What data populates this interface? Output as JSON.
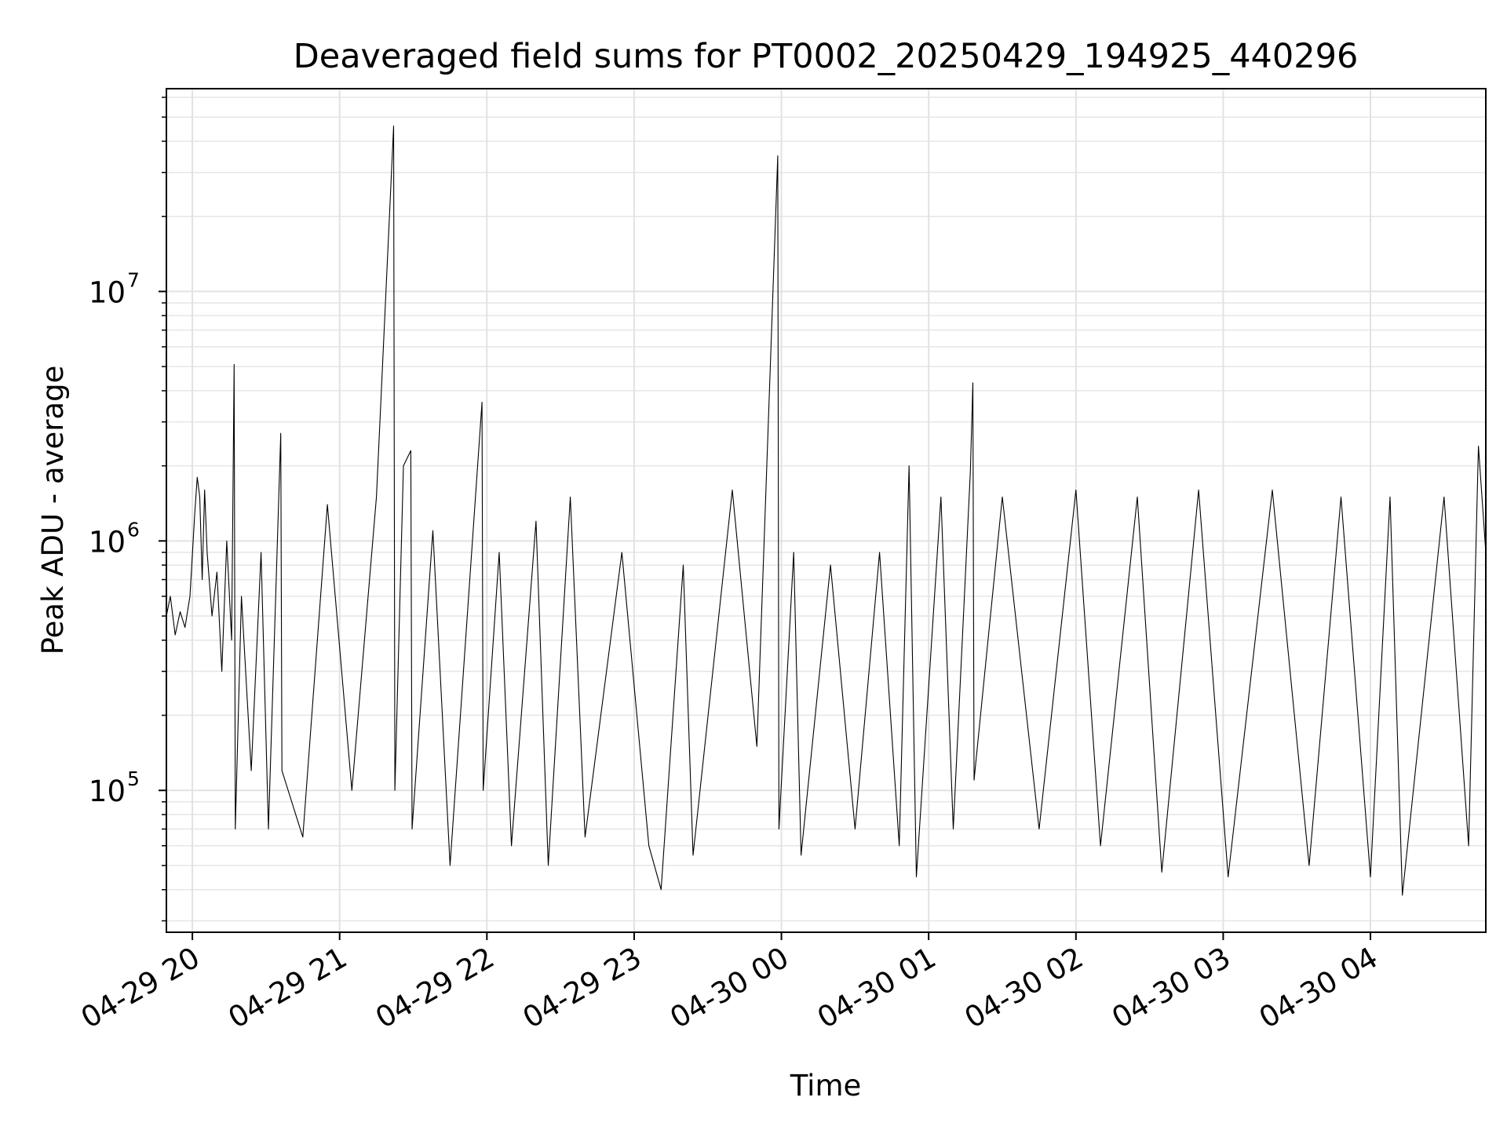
{
  "chart_data": {
    "type": "line",
    "title": "Deaveraged field sums for PT0002_20250429_194925_440296",
    "xlabel": "Time",
    "ylabel": "Peak ADU - average",
    "x_axis": {
      "type": "datetime",
      "range": [
        "2025-04-29 19:49:25",
        "2025-04-30 04:47:00"
      ],
      "ticks": [
        {
          "value": "2025-04-29 20:00",
          "label": "04-29 20"
        },
        {
          "value": "2025-04-29 21:00",
          "label": "04-29 21"
        },
        {
          "value": "2025-04-29 22:00",
          "label": "04-29 22"
        },
        {
          "value": "2025-04-29 23:00",
          "label": "04-29 23"
        },
        {
          "value": "2025-04-30 00:00",
          "label": "04-30 00"
        },
        {
          "value": "2025-04-30 01:00",
          "label": "04-30 01"
        },
        {
          "value": "2025-04-30 02:00",
          "label": "04-30 02"
        },
        {
          "value": "2025-04-30 03:00",
          "label": "04-30 03"
        },
        {
          "value": "2025-04-30 04:00",
          "label": "04-30 04"
        }
      ]
    },
    "y_axis": {
      "scale": "log",
      "range": [
        27000,
        65000000
      ],
      "ticks": [
        {
          "value": 100000,
          "base": "10",
          "exp": "5"
        },
        {
          "value": 1000000,
          "base": "10",
          "exp": "6"
        },
        {
          "value": 10000000,
          "base": "10",
          "exp": "7"
        }
      ]
    },
    "grid": {
      "major": true,
      "minor": true
    },
    "legend": "none",
    "line_color": "#000000",
    "series": [
      {
        "points": [
          [
            "2025-04-29 19:49:25",
            500000
          ],
          [
            "2025-04-29 19:51:00",
            600000
          ],
          [
            "2025-04-29 19:53:00",
            420000
          ],
          [
            "2025-04-29 19:55:00",
            520000
          ],
          [
            "2025-04-29 19:57:00",
            450000
          ],
          [
            "2025-04-29 19:59:00",
            600000
          ],
          [
            "2025-04-29 20:01:00",
            1300000
          ],
          [
            "2025-04-29 20:02:00",
            1800000
          ],
          [
            "2025-04-29 20:03:00",
            1500000
          ],
          [
            "2025-04-29 20:04:00",
            700000
          ],
          [
            "2025-04-29 20:05:00",
            1600000
          ],
          [
            "2025-04-29 20:06:00",
            900000
          ],
          [
            "2025-04-29 20:08:00",
            500000
          ],
          [
            "2025-04-29 20:10:00",
            750000
          ],
          [
            "2025-04-29 20:12:00",
            300000
          ],
          [
            "2025-04-29 20:14:00",
            1000000
          ],
          [
            "2025-04-29 20:16:00",
            400000
          ],
          [
            "2025-04-29 20:17:00",
            5100000
          ],
          [
            "2025-04-29 20:17:30",
            70000
          ],
          [
            "2025-04-29 20:20:00",
            600000
          ],
          [
            "2025-04-29 20:24:00",
            120000
          ],
          [
            "2025-04-29 20:28:00",
            900000
          ],
          [
            "2025-04-29 20:31:00",
            70000
          ],
          [
            "2025-04-29 20:36:00",
            2700000
          ],
          [
            "2025-04-29 20:36:30",
            120000
          ],
          [
            "2025-04-29 20:45:00",
            65000
          ],
          [
            "2025-04-29 20:55:00",
            1400000
          ],
          [
            "2025-04-29 21:05:00",
            100000
          ],
          [
            "2025-04-29 21:15:00",
            1500000
          ],
          [
            "2025-04-29 21:22:00",
            46000000
          ],
          [
            "2025-04-29 21:22:30",
            100000
          ],
          [
            "2025-04-29 21:26:00",
            2000000
          ],
          [
            "2025-04-29 21:29:00",
            2300000
          ],
          [
            "2025-04-29 21:29:30",
            70000
          ],
          [
            "2025-04-29 21:38:00",
            1100000
          ],
          [
            "2025-04-29 21:45:00",
            50000
          ],
          [
            "2025-04-29 21:58:00",
            3600000
          ],
          [
            "2025-04-29 21:58:30",
            100000
          ],
          [
            "2025-04-29 22:05:00",
            900000
          ],
          [
            "2025-04-29 22:10:00",
            60000
          ],
          [
            "2025-04-29 22:20:00",
            1200000
          ],
          [
            "2025-04-29 22:25:00",
            50000
          ],
          [
            "2025-04-29 22:34:00",
            1500000
          ],
          [
            "2025-04-29 22:40:00",
            65000
          ],
          [
            "2025-04-29 22:55:00",
            900000
          ],
          [
            "2025-04-29 23:06:00",
            60000
          ],
          [
            "2025-04-29 23:11:00",
            40000
          ],
          [
            "2025-04-29 23:20:00",
            800000
          ],
          [
            "2025-04-29 23:24:00",
            55000
          ],
          [
            "2025-04-29 23:40:00",
            1600000
          ],
          [
            "2025-04-29 23:50:00",
            150000
          ],
          [
            "2025-04-29 23:58:30",
            35000000
          ],
          [
            "2025-04-29 23:59:00",
            70000
          ],
          [
            "2025-04-30 00:05:00",
            900000
          ],
          [
            "2025-04-30 00:08:00",
            55000
          ],
          [
            "2025-04-30 00:20:00",
            800000
          ],
          [
            "2025-04-30 00:30:00",
            70000
          ],
          [
            "2025-04-30 00:40:00",
            900000
          ],
          [
            "2025-04-30 00:48:00",
            60000
          ],
          [
            "2025-04-30 00:52:00",
            2000000
          ],
          [
            "2025-04-30 00:55:00",
            45000
          ],
          [
            "2025-04-30 01:05:00",
            1500000
          ],
          [
            "2025-04-30 01:10:00",
            70000
          ],
          [
            "2025-04-30 01:17:00",
            1900000
          ],
          [
            "2025-04-30 01:18:00",
            4300000
          ],
          [
            "2025-04-30 01:18:30",
            110000
          ],
          [
            "2025-04-30 01:30:00",
            1500000
          ],
          [
            "2025-04-30 01:45:00",
            70000
          ],
          [
            "2025-04-30 02:00:00",
            1600000
          ],
          [
            "2025-04-30 02:10:00",
            60000
          ],
          [
            "2025-04-30 02:25:00",
            1500000
          ],
          [
            "2025-04-30 02:35:00",
            47000
          ],
          [
            "2025-04-30 02:50:00",
            1600000
          ],
          [
            "2025-04-30 03:02:00",
            45000
          ],
          [
            "2025-04-30 03:20:00",
            1600000
          ],
          [
            "2025-04-30 03:35:00",
            50000
          ],
          [
            "2025-04-30 03:48:00",
            1500000
          ],
          [
            "2025-04-30 04:00:00",
            45000
          ],
          [
            "2025-04-30 04:08:00",
            1500000
          ],
          [
            "2025-04-30 04:13:00",
            38000
          ],
          [
            "2025-04-30 04:30:00",
            1500000
          ],
          [
            "2025-04-30 04:40:00",
            60000
          ],
          [
            "2025-04-30 04:44:00",
            2400000
          ],
          [
            "2025-04-30 04:47:00",
            900000
          ]
        ]
      }
    ]
  }
}
